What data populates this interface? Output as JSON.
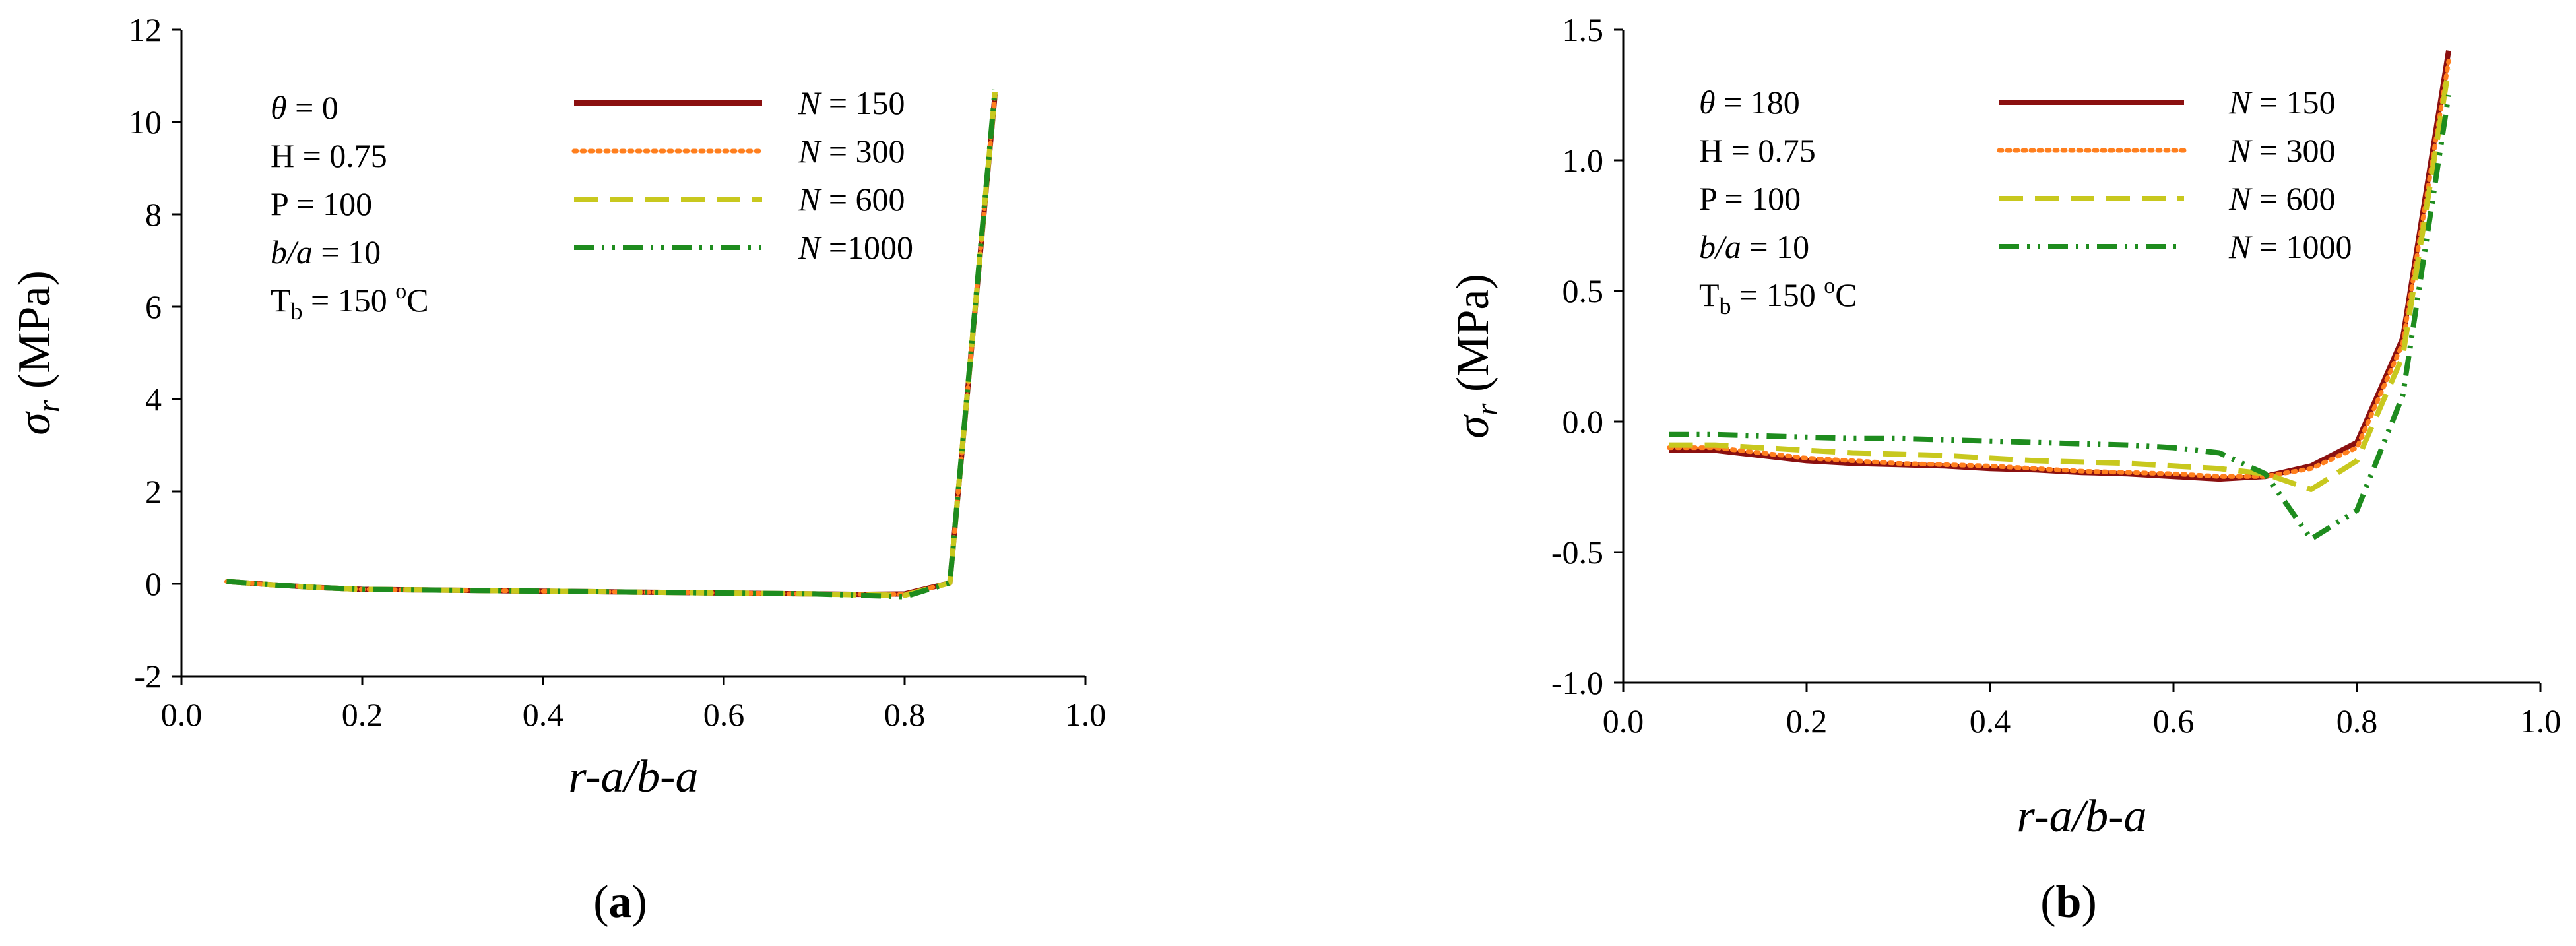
{
  "chart_data": [
    {
      "type": "line",
      "panel_label": "(a)",
      "panel_letter": "a",
      "xlabel": "r-a/b-a",
      "ylabel_symbol": "σ",
      "ylabel_sub": "r",
      "ylabel_unit": "(MPa)",
      "xlim": [
        0,
        1.0
      ],
      "ylim": [
        -2,
        12
      ],
      "x_ticks": [
        0.0,
        0.2,
        0.4,
        0.6,
        0.8,
        1.0
      ],
      "x_tick_labels": [
        "0.0",
        "0.2",
        "0.4",
        "0.6",
        "0.8",
        "1.0"
      ],
      "y_ticks": [
        -2,
        0,
        2,
        4,
        6,
        8,
        10,
        12
      ],
      "y_tick_labels": [
        "-2",
        "0",
        "2",
        "4",
        "6",
        "8",
        "10",
        "12"
      ],
      "grid": false,
      "params": [
        {
          "sym": "θ",
          "rest": " = 0"
        },
        {
          "plain": "H = 0.75"
        },
        {
          "plain": "P = 100"
        },
        {
          "sym": "b/a",
          "rest": " = 10"
        },
        {
          "tb": true,
          "value": " = 150 ",
          "unit_sup": "o",
          "unit": "C"
        }
      ],
      "legend_position": "top-right",
      "x": [
        0.05,
        0.1,
        0.15,
        0.2,
        0.25,
        0.3,
        0.35,
        0.4,
        0.45,
        0.5,
        0.55,
        0.6,
        0.65,
        0.7,
        0.75,
        0.8,
        0.85,
        0.9
      ],
      "series": [
        {
          "name": "N = 150",
          "n_label": "N",
          "rest": " = 150",
          "color": "#8b1010",
          "dash": "solid",
          "values": [
            0.05,
            -0.02,
            -0.08,
            -0.12,
            -0.13,
            -0.14,
            -0.15,
            -0.16,
            -0.17,
            -0.18,
            -0.19,
            -0.2,
            -0.21,
            -0.22,
            -0.23,
            -0.22,
            0.02,
            10.6
          ]
        },
        {
          "name": "N = 300",
          "n_label": "N",
          "rest": " = 300",
          "color": "#ff7f1e",
          "dash": "dot",
          "values": [
            0.05,
            -0.02,
            -0.08,
            -0.12,
            -0.13,
            -0.14,
            -0.15,
            -0.16,
            -0.17,
            -0.18,
            -0.19,
            -0.2,
            -0.21,
            -0.22,
            -0.23,
            -0.23,
            0.02,
            10.6
          ]
        },
        {
          "name": "N = 600",
          "n_label": "N",
          "rest": " = 600",
          "color": "#c8c81e",
          "dash": "dash",
          "values": [
            0.05,
            -0.02,
            -0.08,
            -0.12,
            -0.13,
            -0.14,
            -0.15,
            -0.16,
            -0.17,
            -0.18,
            -0.19,
            -0.2,
            -0.21,
            -0.22,
            -0.24,
            -0.25,
            0.02,
            10.65
          ]
        },
        {
          "name": "N =1000",
          "n_label": "N",
          "rest": " =1000",
          "color": "#1e8c1e",
          "dash": "dashdotdot",
          "values": [
            0.05,
            -0.02,
            -0.08,
            -0.12,
            -0.13,
            -0.14,
            -0.15,
            -0.16,
            -0.17,
            -0.18,
            -0.19,
            -0.2,
            -0.21,
            -0.22,
            -0.25,
            -0.28,
            0.02,
            10.7
          ]
        }
      ]
    },
    {
      "type": "line",
      "panel_label": "(b)",
      "panel_letter": "b",
      "xlabel": "r-a/b-a",
      "ylabel_symbol": "σ",
      "ylabel_sub": "r",
      "ylabel_unit": "(MPa)",
      "xlim": [
        0,
        1.0
      ],
      "ylim": [
        -1.0,
        1.5
      ],
      "x_ticks": [
        0.0,
        0.2,
        0.4,
        0.6,
        0.8,
        1.0
      ],
      "x_tick_labels": [
        "0.0",
        "0.2",
        "0.4",
        "0.6",
        "0.8",
        "1.0"
      ],
      "y_ticks": [
        -1.0,
        -0.5,
        0.0,
        0.5,
        1.0,
        1.5
      ],
      "y_tick_labels": [
        "-1.0",
        "-0.5",
        "0.0",
        "0.5",
        "1.0",
        "1.5"
      ],
      "grid": false,
      "params": [
        {
          "sym": "θ",
          "rest": " = 180"
        },
        {
          "plain": "H = 0.75"
        },
        {
          "plain": "P = 100"
        },
        {
          "sym": "b/a",
          "rest": " = 10"
        },
        {
          "tb": true,
          "value": " = 150 ",
          "unit_sup": "o",
          "unit": "C"
        }
      ],
      "legend_position": "top-right",
      "x": [
        0.05,
        0.1,
        0.15,
        0.2,
        0.25,
        0.3,
        0.35,
        0.4,
        0.45,
        0.5,
        0.55,
        0.6,
        0.65,
        0.7,
        0.75,
        0.8,
        0.85,
        0.9
      ],
      "series": [
        {
          "name": "N = 150",
          "n_label": "N",
          "rest": " = 150",
          "color": "#8b1010",
          "dash": "solid",
          "values": [
            -0.11,
            -0.11,
            -0.13,
            -0.15,
            -0.16,
            -0.165,
            -0.17,
            -0.18,
            -0.185,
            -0.195,
            -0.2,
            -0.21,
            -0.22,
            -0.21,
            -0.17,
            -0.08,
            0.32,
            1.42
          ]
        },
        {
          "name": "N = 300",
          "n_label": "N",
          "rest": " = 300",
          "color": "#ff7f1e",
          "dash": "dot",
          "values": [
            -0.1,
            -0.1,
            -0.12,
            -0.14,
            -0.15,
            -0.16,
            -0.165,
            -0.17,
            -0.18,
            -0.19,
            -0.195,
            -0.2,
            -0.21,
            -0.21,
            -0.18,
            -0.1,
            0.3,
            1.38
          ]
        },
        {
          "name": "N = 600",
          "n_label": "N",
          "rest": " = 600",
          "color": "#c8c81e",
          "dash": "dash",
          "values": [
            -0.09,
            -0.09,
            -0.1,
            -0.11,
            -0.12,
            -0.125,
            -0.13,
            -0.14,
            -0.15,
            -0.155,
            -0.16,
            -0.17,
            -0.18,
            -0.2,
            -0.26,
            -0.15,
            0.25,
            1.35
          ]
        },
        {
          "name": "N = 1000",
          "n_label": "N",
          "rest": " = 1000",
          "color": "#1e8c1e",
          "dash": "dashdotdot",
          "values": [
            -0.05,
            -0.05,
            -0.055,
            -0.06,
            -0.065,
            -0.065,
            -0.07,
            -0.075,
            -0.08,
            -0.085,
            -0.09,
            -0.1,
            -0.12,
            -0.2,
            -0.45,
            -0.34,
            0.1,
            1.25
          ]
        }
      ]
    }
  ]
}
